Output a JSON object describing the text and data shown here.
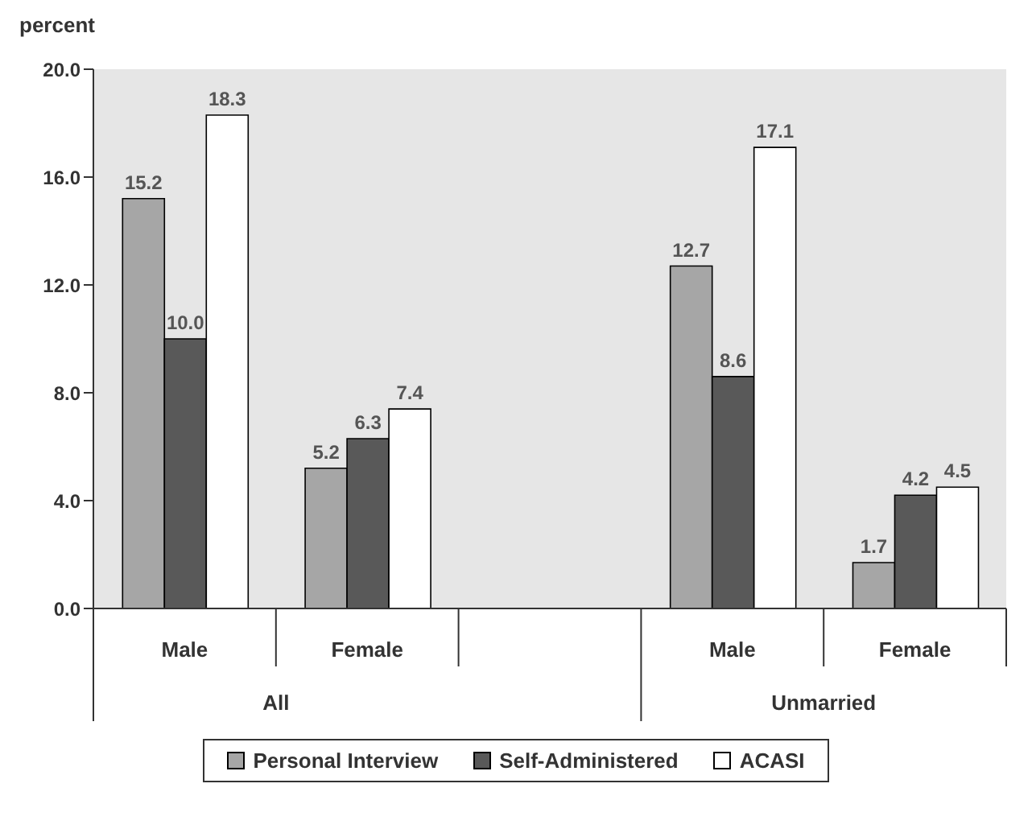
{
  "chart_data": {
    "type": "bar",
    "ylabel": "percent",
    "categories": [
      "Male",
      "Female",
      null,
      "Male",
      "Female"
    ],
    "annotations": [
      "All",
      "Unmarried"
    ],
    "series": [
      {
        "name": "Personal Interview",
        "color": "#a6a6a6",
        "values": [
          15.2,
          5.2,
          null,
          12.7,
          1.7
        ],
        "value_labels": [
          "15.2",
          "5.2",
          null,
          "12.7",
          "1.7"
        ]
      },
      {
        "name": "Self-Administered",
        "color": "#595959",
        "values": [
          10.0,
          6.3,
          null,
          8.6,
          4.2
        ],
        "value_labels": [
          "10.0",
          "6.3",
          null,
          "8.6",
          "4.2"
        ]
      },
      {
        "name": "ACASI",
        "color": "#ffffff",
        "values": [
          18.3,
          7.4,
          null,
          17.1,
          4.5
        ],
        "value_labels": [
          "18.3",
          "7.4",
          null,
          "17.1",
          "4.5"
        ]
      }
    ],
    "ylim": [
      0,
      20
    ],
    "yticks": [
      {
        "value": 0,
        "label": "0.0"
      },
      {
        "value": 4,
        "label": "4.0"
      },
      {
        "value": 8,
        "label": "8.0"
      },
      {
        "value": 12,
        "label": "12.0"
      },
      {
        "value": 16,
        "label": "16.0"
      },
      {
        "value": 20,
        "label": "20.0"
      }
    ],
    "grid": false,
    "legend": "bottom"
  }
}
